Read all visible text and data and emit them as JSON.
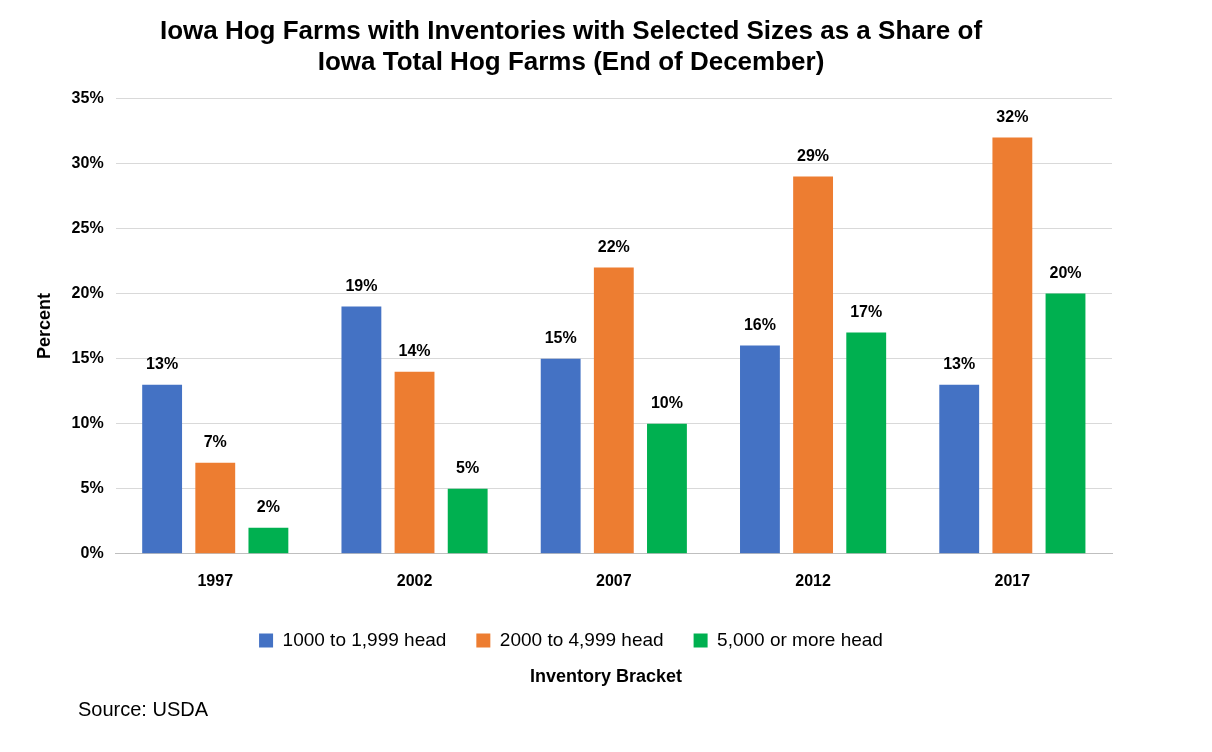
{
  "chart_data": {
    "type": "bar",
    "title": [
      "Iowa Hog Farms with Inventories with Selected Sizes as a Share of",
      "Iowa Total Hog Farms (End of December)"
    ],
    "categories": [
      "1997",
      "2002",
      "2007",
      "2012",
      "2017"
    ],
    "series": [
      {
        "name": "1000 to 1,999 head",
        "color": "#4472c4",
        "values": [
          13,
          19,
          15,
          16,
          13
        ],
        "value_labels": [
          "13%",
          "19%",
          "15%",
          "16%",
          "13%"
        ]
      },
      {
        "name": "2000 to 4,999 head",
        "color": "#ed7d31",
        "values": [
          7,
          14,
          22,
          29,
          32
        ],
        "value_labels": [
          "7%",
          "14%",
          "22%",
          "29%",
          "32%"
        ]
      },
      {
        "name": "5,000 or more head",
        "color": "#00b050",
        "values": [
          2,
          5,
          10,
          17,
          20
        ],
        "value_labels": [
          "2%",
          "5%",
          "10%",
          "17%",
          "20%"
        ]
      }
    ],
    "ylim": [
      0,
      35
    ],
    "yticks": [
      {
        "value": 0,
        "label": "0%"
      },
      {
        "value": 5,
        "label": "5%"
      },
      {
        "value": 10,
        "label": "10%"
      },
      {
        "value": 15,
        "label": "15%"
      },
      {
        "value": 20,
        "label": "20%"
      },
      {
        "value": 25,
        "label": "25%"
      },
      {
        "value": 30,
        "label": "30%"
      },
      {
        "value": 35,
        "label": "35%"
      }
    ],
    "ylabel": "Percent",
    "xlabel": "Inventory Bracket",
    "grid": "y",
    "legend": "bottom",
    "annotations": [
      "Source: USDA"
    ]
  }
}
